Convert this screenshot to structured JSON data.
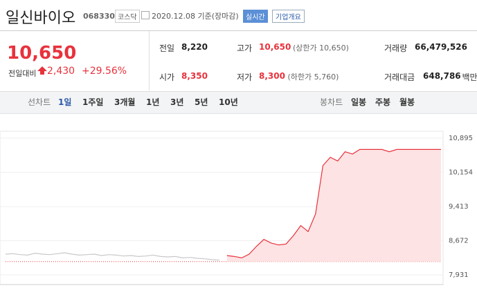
{
  "header": {
    "name": "일신바이오",
    "code": "068330",
    "market": "코스닥",
    "date": "2020.12.08 기준(장마감)",
    "realtime": "실시간",
    "company_info": "기업개요"
  },
  "quote": {
    "price": "10,650",
    "change_label": "전일대비",
    "change": "2,430",
    "rate": "+29.56%"
  },
  "stats": [
    {
      "label": "전일",
      "value": "8,220"
    },
    {
      "label": "고가",
      "value": "10,650",
      "note": "(상한가 10,650)"
    },
    {
      "label": "거래량",
      "value": "66,479,526"
    },
    {
      "label": "시가",
      "value": "8,350"
    },
    {
      "label": "저가",
      "value": "8,300",
      "note": "(하한가 5,760)"
    },
    {
      "label": "거래대금",
      "value": "648,786",
      "unit": "백만"
    }
  ],
  "tabs": {
    "line_label": "선차트",
    "line": [
      "1일",
      "1주일",
      "3개월",
      "1년",
      "3년",
      "5년",
      "10년"
    ],
    "candle_label": "봉차트",
    "candle": [
      "일봉",
      "주봉",
      "월봉"
    ]
  },
  "chart_data": {
    "type": "line",
    "baseline": 8220,
    "ylim": [
      7931,
      10895
    ],
    "yticks": [
      {
        "value": 7931,
        "label": "7,931"
      },
      {
        "value": 8672,
        "label": "8,672"
      },
      {
        "value": 9413,
        "label": "9,413"
      },
      {
        "value": 10154,
        "label": "10,154"
      },
      {
        "value": 10895,
        "label": "10,895"
      }
    ],
    "series": [
      {
        "color": "#c8c8c8",
        "values": [
          8380,
          8390,
          8370,
          8360,
          8400,
          8380,
          8370,
          8390,
          8410,
          8380,
          8360,
          8370,
          8380,
          8350,
          8370,
          8360,
          8340,
          8350,
          8330,
          8340,
          8360,
          8330,
          8320,
          8330,
          8300,
          8310,
          8290,
          8280,
          8260,
          8250,
          null,
          null,
          null,
          null,
          null,
          null,
          null,
          null,
          null,
          null,
          null,
          null,
          null,
          null,
          null,
          null,
          null,
          null,
          null,
          null,
          null,
          null,
          null,
          null,
          null,
          null,
          null,
          null,
          null,
          null
        ]
      },
      {
        "color": "#e8323c",
        "values": [
          null,
          null,
          null,
          null,
          null,
          null,
          null,
          null,
          null,
          null,
          null,
          null,
          null,
          null,
          null,
          null,
          null,
          null,
          null,
          null,
          null,
          null,
          null,
          null,
          null,
          null,
          null,
          null,
          null,
          null,
          8350,
          8330,
          8300,
          8380,
          8550,
          8700,
          8620,
          8580,
          8600,
          8780,
          9000,
          8870,
          9250,
          10300,
          10480,
          10400,
          10600,
          10550,
          10650,
          10650,
          10650,
          10650,
          10600,
          10650,
          10650,
          10650,
          10650,
          10650,
          10650,
          10650
        ]
      }
    ]
  }
}
